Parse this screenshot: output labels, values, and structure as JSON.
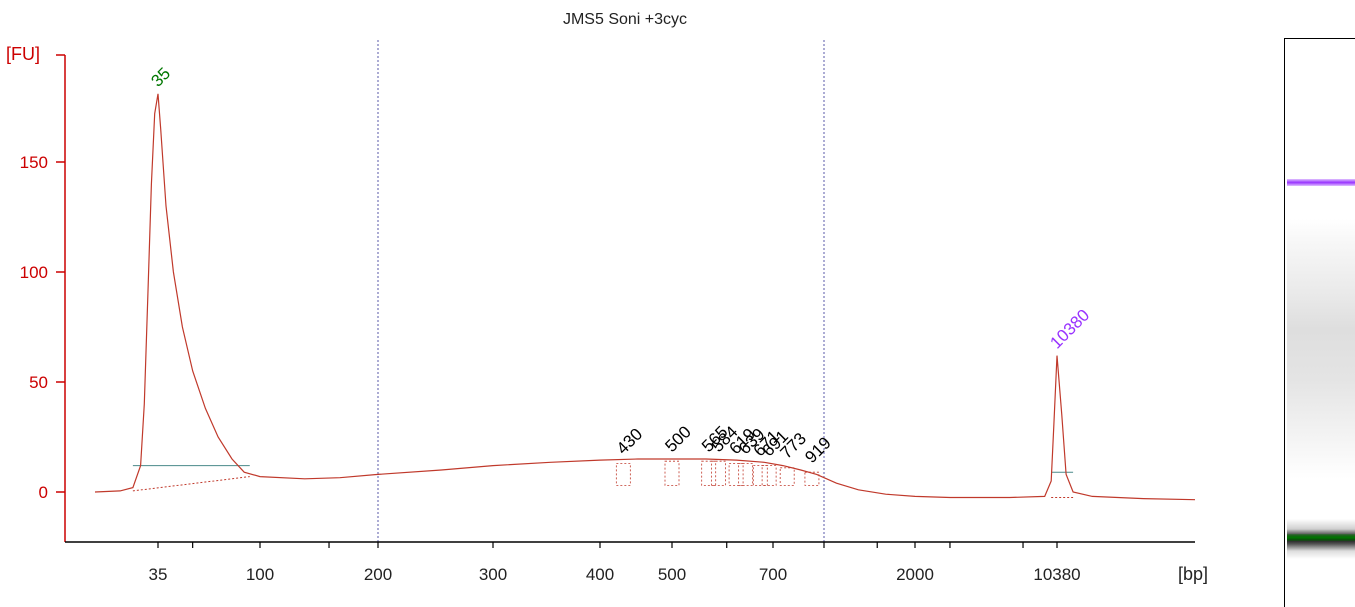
{
  "chart_data": {
    "type": "line",
    "title": "JMS5 Soni +3cyc",
    "ylabel": "[FU]",
    "xlabel": "[bp]",
    "ylim": [
      -23,
      205
    ],
    "yticks": [
      0,
      50,
      100,
      150
    ],
    "x_tick_labels": [
      "35",
      "100",
      "200",
      "300",
      "400",
      "500",
      "700",
      "2000",
      "10380"
    ],
    "lower_marker_color": "#007700",
    "upper_marker_color": "#9933ff",
    "trace_color": "#c0392b",
    "axis_color": "#cc0000",
    "peaks": [
      {
        "label": "35",
        "size_bp": 35,
        "fu": 181,
        "color": "#007700"
      },
      {
        "label": "430",
        "size_bp": 430,
        "fu": 14,
        "color": "#000000"
      },
      {
        "label": "500",
        "size_bp": 500,
        "fu": 15,
        "color": "#000000"
      },
      {
        "label": "565",
        "size_bp": 565,
        "fu": 15,
        "color": "#000000"
      },
      {
        "label": "584",
        "size_bp": 584,
        "fu": 15,
        "color": "#000000"
      },
      {
        "label": "619",
        "size_bp": 619,
        "fu": 14,
        "color": "#000000"
      },
      {
        "label": "639",
        "size_bp": 639,
        "fu": 14,
        "color": "#000000"
      },
      {
        "label": "671",
        "size_bp": 671,
        "fu": 13,
        "color": "#000000"
      },
      {
        "label": "691",
        "size_bp": 691,
        "fu": 13,
        "color": "#000000"
      },
      {
        "label": "773",
        "size_bp": 773,
        "fu": 12,
        "color": "#000000"
      },
      {
        "label": "919",
        "size_bp": 919,
        "fu": 10,
        "color": "#000000"
      },
      {
        "label": "10380",
        "size_bp": 10380,
        "fu": 62,
        "color": "#9933ff"
      }
    ],
    "region_bounds_bp": [
      200,
      1000
    ],
    "trace": [
      {
        "bp": 20,
        "fu": 0
      },
      {
        "bp": 25,
        "fu": 0.5
      },
      {
        "bp": 28,
        "fu": 2
      },
      {
        "bp": 30,
        "fu": 12
      },
      {
        "bp": 31,
        "fu": 40
      },
      {
        "bp": 32,
        "fu": 90
      },
      {
        "bp": 33,
        "fu": 140
      },
      {
        "bp": 34,
        "fu": 172
      },
      {
        "bp": 35,
        "fu": 181
      },
      {
        "bp": 36,
        "fu": 165
      },
      {
        "bp": 38,
        "fu": 130
      },
      {
        "bp": 41,
        "fu": 100
      },
      {
        "bp": 45,
        "fu": 75
      },
      {
        "bp": 50,
        "fu": 55
      },
      {
        "bp": 57,
        "fu": 38
      },
      {
        "bp": 65,
        "fu": 25
      },
      {
        "bp": 75,
        "fu": 15
      },
      {
        "bp": 85,
        "fu": 9
      },
      {
        "bp": 100,
        "fu": 7
      },
      {
        "bp": 130,
        "fu": 6
      },
      {
        "bp": 160,
        "fu": 6.5
      },
      {
        "bp": 200,
        "fu": 8
      },
      {
        "bp": 250,
        "fu": 10
      },
      {
        "bp": 300,
        "fu": 12
      },
      {
        "bp": 350,
        "fu": 13.5
      },
      {
        "bp": 400,
        "fu": 14.5
      },
      {
        "bp": 450,
        "fu": 15
      },
      {
        "bp": 500,
        "fu": 15
      },
      {
        "bp": 560,
        "fu": 15
      },
      {
        "bp": 620,
        "fu": 14.5
      },
      {
        "bp": 680,
        "fu": 13.5
      },
      {
        "bp": 750,
        "fu": 12
      },
      {
        "bp": 850,
        "fu": 10
      },
      {
        "bp": 950,
        "fu": 8
      },
      {
        "bp": 1100,
        "fu": 4
      },
      {
        "bp": 1300,
        "fu": 1
      },
      {
        "bp": 1600,
        "fu": -1
      },
      {
        "bp": 2000,
        "fu": -2
      },
      {
        "bp": 3000,
        "fu": -2.5
      },
      {
        "bp": 6000,
        "fu": -2.5
      },
      {
        "bp": 9000,
        "fu": -2
      },
      {
        "bp": 9700,
        "fu": 5
      },
      {
        "bp": 10000,
        "fu": 30
      },
      {
        "bp": 10380,
        "fu": 62
      },
      {
        "bp": 10700,
        "fu": 35
      },
      {
        "bp": 11000,
        "fu": 8
      },
      {
        "bp": 11500,
        "fu": 0
      },
      {
        "bp": 13000,
        "fu": -2
      },
      {
        "bp": 18000,
        "fu": -3
      },
      {
        "bp": 25000,
        "fu": -3.5
      }
    ]
  }
}
